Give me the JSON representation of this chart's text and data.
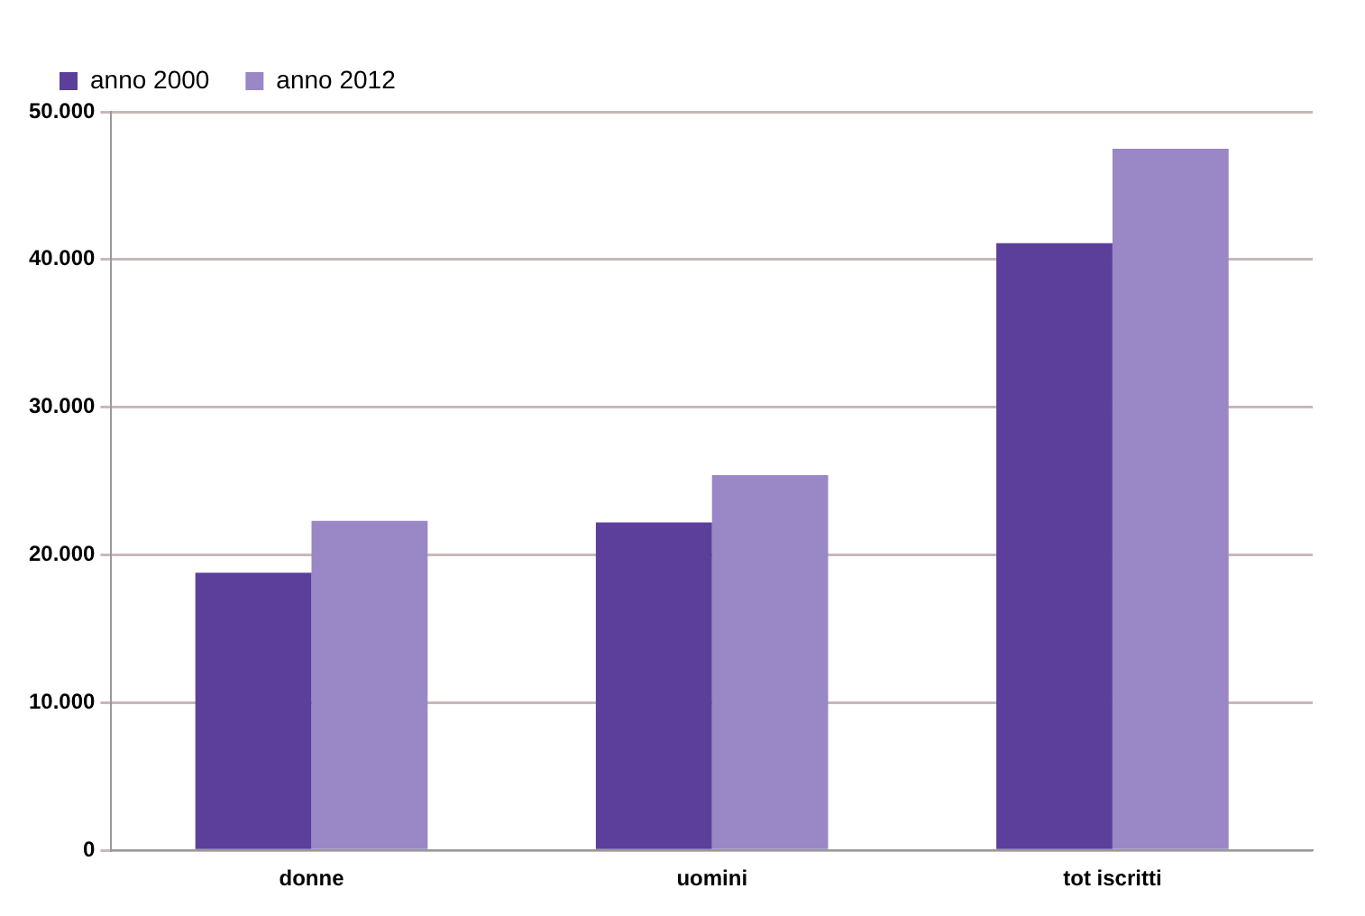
{
  "chart_data": {
    "type": "bar",
    "categories": [
      "donne",
      "uomini",
      "tot iscritti"
    ],
    "series": [
      {
        "name": "anno 2000",
        "color": "#5b3f9a",
        "values": [
          18800,
          22200,
          41100
        ]
      },
      {
        "name": "anno 2012",
        "color": "#9a87c6",
        "values": [
          22300,
          25400,
          47500
        ]
      }
    ],
    "ylim": [
      0,
      50000
    ],
    "yticks": [
      {
        "value": 0,
        "label": "0"
      },
      {
        "value": 10000,
        "label": "10.000"
      },
      {
        "value": 20000,
        "label": "20.000"
      },
      {
        "value": 30000,
        "label": "30.000"
      },
      {
        "value": 40000,
        "label": "40.000"
      },
      {
        "value": 50000,
        "label": "50.000"
      }
    ],
    "grid": "y",
    "legend": "top left"
  }
}
